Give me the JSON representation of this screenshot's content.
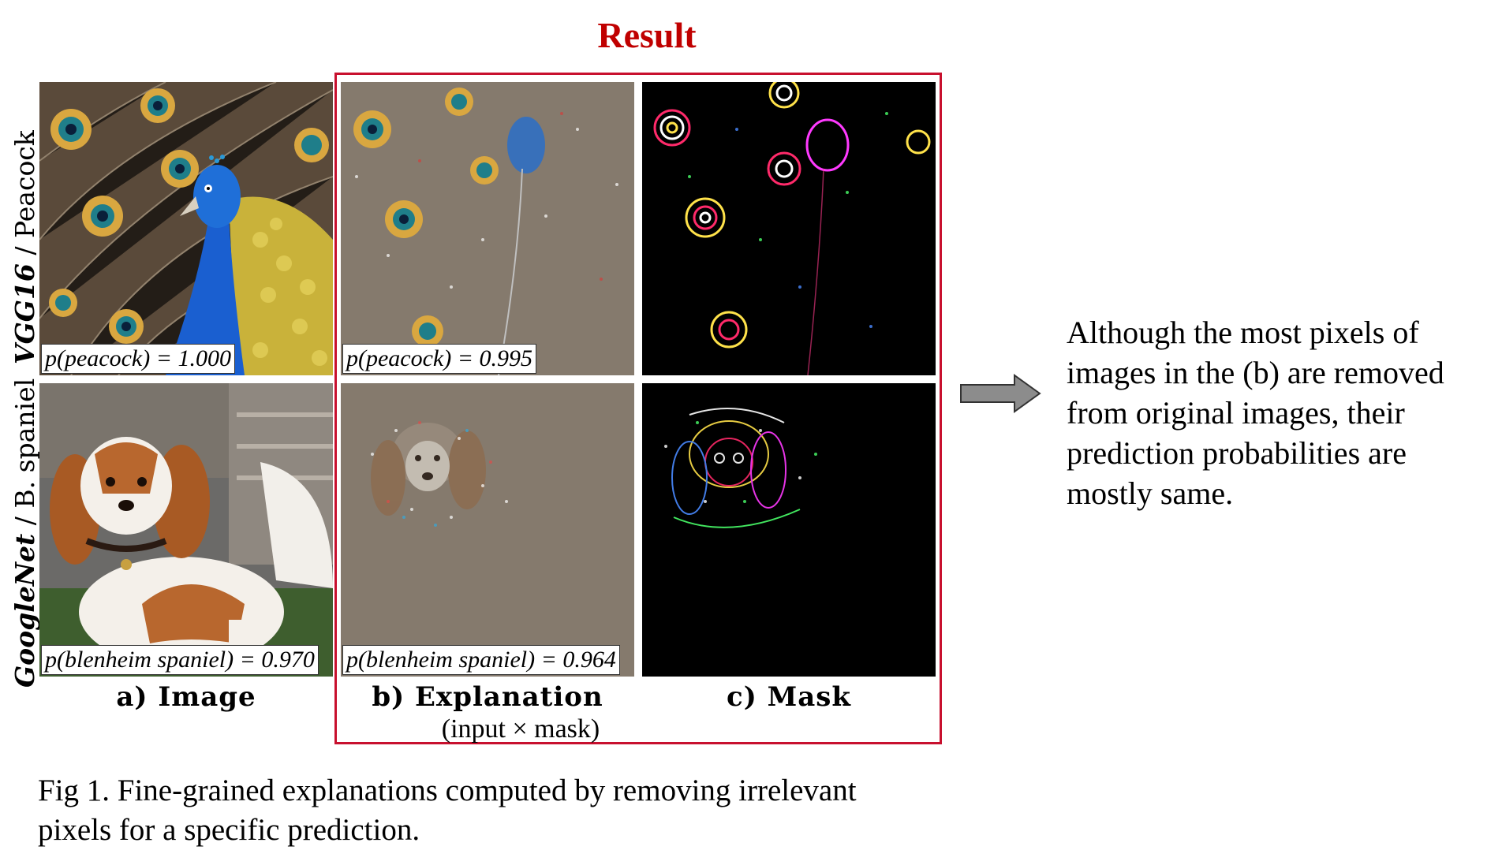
{
  "result_title": "Result",
  "rows": [
    {
      "label": {
        "network": "VGG16",
        "separator": "/",
        "class": "Peacock"
      },
      "image_prob": "p(peacock) = 1.000",
      "explanation_prob": "p(peacock) = 0.995"
    },
    {
      "label": {
        "network": "GoogleNet",
        "separator": "/",
        "class": "B. spaniel"
      },
      "image_prob": "p(blenheim spaniel) = 0.970",
      "explanation_prob": "p(blenheim spaniel) = 0.964"
    }
  ],
  "columns": {
    "image": "a)  Image",
    "explanation": "b)  Explanation",
    "explanation_sub": "(input × mask)",
    "mask": "c)  Mask"
  },
  "caption_line1": "Fig 1. Fine-grained explanations computed by removing irrelevant",
  "caption_line2": "pixels for a specific prediction.",
  "side_text": [
    "Although the most pixels of",
    "images in the (b) are removed",
    "from original images, their",
    "prediction probabilities are",
    "mostly same."
  ],
  "colors": {
    "result_red": "#c00000",
    "box_border": "#c8102e",
    "explanation_bg": "#857a6d",
    "mask_bg": "#000000",
    "arrow": "#8c8c8c"
  },
  "icons": {
    "arrow": "right-arrow-icon"
  }
}
